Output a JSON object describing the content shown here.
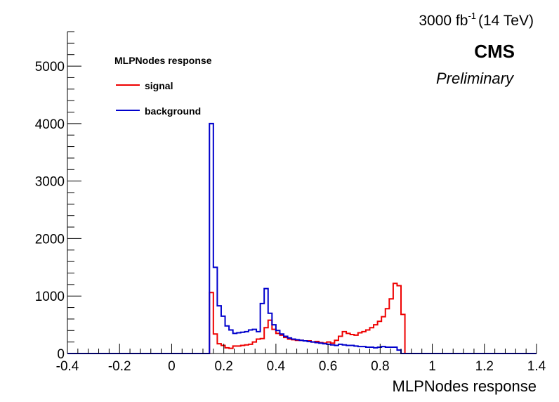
{
  "chart_data": {
    "type": "line",
    "style": "step histogram",
    "xlabel": "MLPNodes response",
    "ylabel": "",
    "xlim": [
      -0.4,
      1.4
    ],
    "ylim": [
      0,
      5600
    ],
    "grid": false,
    "x_ticks": [
      "-0.4",
      "-0.2",
      "0",
      "0.2",
      "0.4",
      "0.6",
      "0.8",
      "1",
      "1.2",
      "1.4"
    ],
    "x_tick_values": [
      -0.4,
      -0.2,
      0,
      0.2,
      0.4,
      0.6,
      0.8,
      1,
      1.2,
      1.4
    ],
    "y_ticks": [
      "0",
      "1000",
      "2000",
      "3000",
      "4000",
      "5000"
    ],
    "y_tick_values": [
      0,
      1000,
      2000,
      3000,
      4000,
      5000
    ],
    "lumi_label": {
      "main": "3000 fb",
      "sup": "-1",
      "energy": "(14 TeV)"
    },
    "experiment": "CMS",
    "status": "Preliminary",
    "legend": {
      "header": "MLPNodes response",
      "position": "top-left",
      "entries": [
        {
          "label": "signal",
          "color": "#ee0000"
        },
        {
          "label": "background",
          "color": "#0000cc"
        }
      ]
    },
    "series": [
      {
        "name": "signal",
        "color": "#ee0000",
        "edges": [
          0.145,
          0.16,
          0.175,
          0.19,
          0.205,
          0.22,
          0.235,
          0.25,
          0.265,
          0.28,
          0.295,
          0.31,
          0.325,
          0.34,
          0.355,
          0.37,
          0.385,
          0.4,
          0.415,
          0.43,
          0.445,
          0.46,
          0.475,
          0.49,
          0.505,
          0.52,
          0.535,
          0.55,
          0.565,
          0.58,
          0.595,
          0.61,
          0.625,
          0.64,
          0.655,
          0.67,
          0.685,
          0.7,
          0.715,
          0.73,
          0.745,
          0.76,
          0.775,
          0.79,
          0.805,
          0.82,
          0.835,
          0.85,
          0.865,
          0.88,
          0.895
        ],
        "values": [
          1060,
          340,
          170,
          140,
          100,
          90,
          130,
          130,
          140,
          150,
          160,
          200,
          250,
          260,
          450,
          580,
          420,
          350,
          320,
          280,
          250,
          240,
          230,
          230,
          220,
          220,
          200,
          210,
          190,
          180,
          200,
          180,
          230,
          300,
          380,
          350,
          330,
          320,
          360,
          380,
          410,
          450,
          500,
          560,
          640,
          780,
          950,
          1220,
          1180,
          680
        ]
      },
      {
        "name": "background",
        "color": "#0000cc",
        "edges": [
          0.145,
          0.16,
          0.175,
          0.19,
          0.205,
          0.22,
          0.235,
          0.25,
          0.265,
          0.28,
          0.295,
          0.31,
          0.325,
          0.34,
          0.355,
          0.37,
          0.385,
          0.4,
          0.415,
          0.43,
          0.445,
          0.46,
          0.475,
          0.49,
          0.505,
          0.52,
          0.535,
          0.55,
          0.565,
          0.58,
          0.595,
          0.61,
          0.625,
          0.64,
          0.655,
          0.67,
          0.685,
          0.7,
          0.715,
          0.73,
          0.745,
          0.76,
          0.775,
          0.79,
          0.805,
          0.82,
          0.835,
          0.85,
          0.865,
          0.88,
          0.895
        ],
        "values": [
          4000,
          1500,
          830,
          650,
          480,
          410,
          350,
          360,
          370,
          380,
          410,
          420,
          380,
          870,
          1130,
          700,
          500,
          400,
          340,
          300,
          270,
          250,
          240,
          230,
          220,
          210,
          200,
          190,
          180,
          170,
          160,
          150,
          140,
          160,
          150,
          140,
          140,
          130,
          120,
          120,
          110,
          110,
          100,
          110,
          120,
          110,
          110,
          110,
          60,
          0
        ]
      }
    ]
  }
}
